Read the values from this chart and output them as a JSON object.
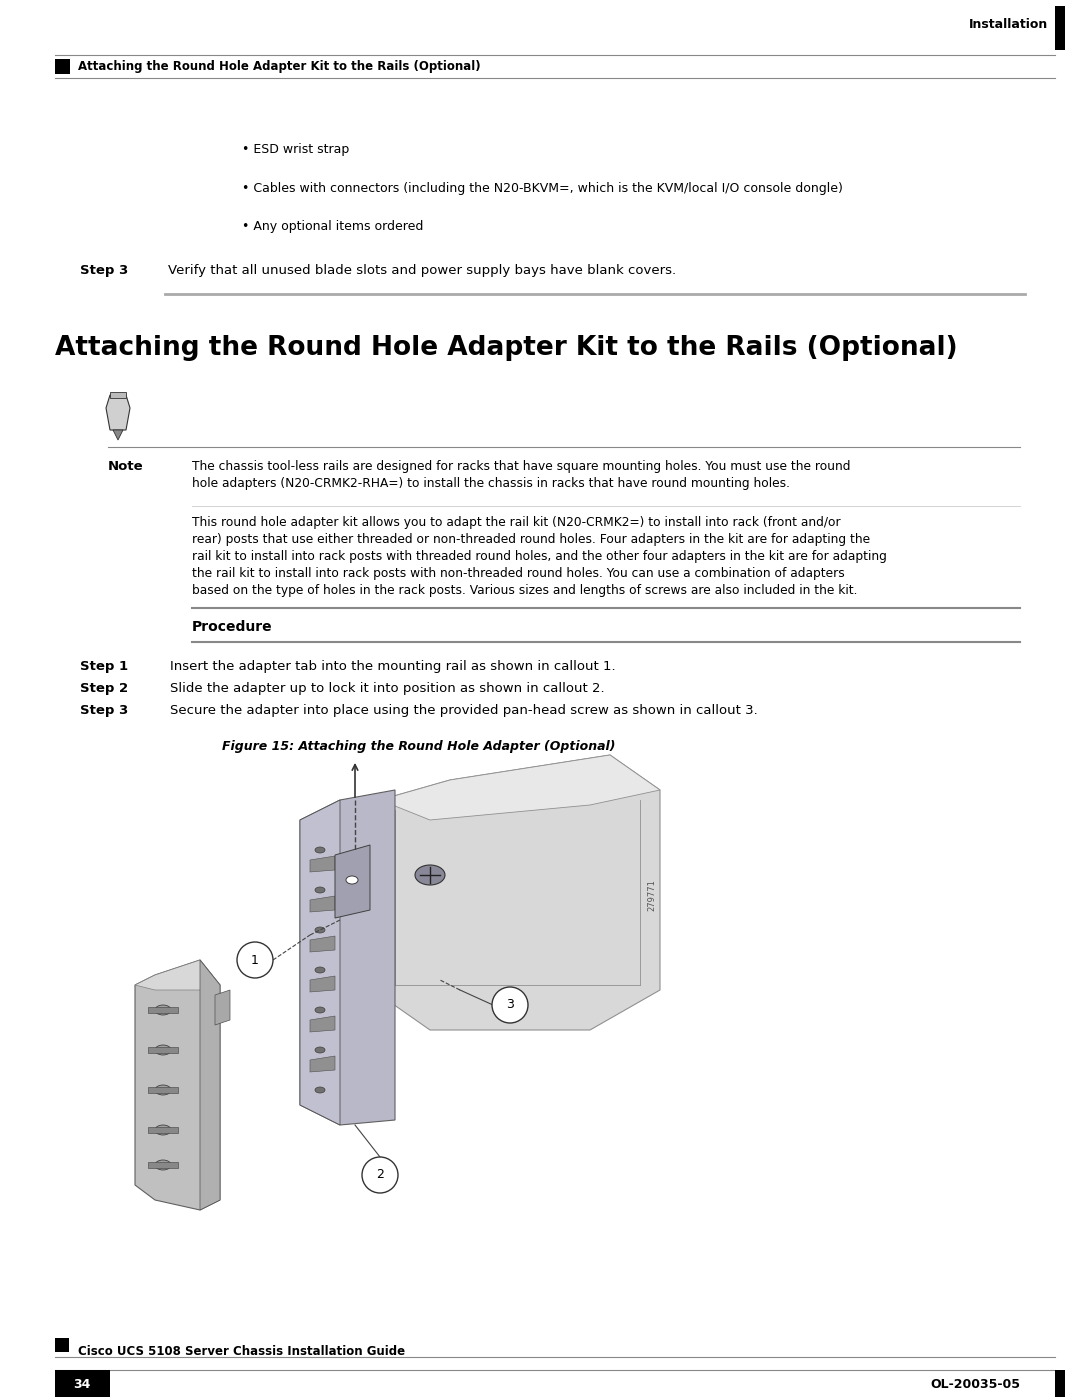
{
  "page_width": 10.8,
  "page_height": 13.97,
  "bg_color": "#ffffff",
  "header_text_right": "Installation",
  "header_subtext": "Attaching the Round Hole Adapter Kit to the Rails (Optional)",
  "footer_left_num": "34",
  "footer_right_text": "OL-20035-05",
  "footer_guide": "Cisco UCS 5108 Server Chassis Installation Guide",
  "bullet_items": [
    "• ESD wrist strap",
    "• Cables with connectors (including the N20-BKVM=, which is the KVM/local I/O console dongle)",
    "• Any optional items ordered"
  ],
  "step3_label": "Step 3",
  "step3_text": "Verify that all unused blade slots and power supply bays have blank covers.",
  "section_title": "Attaching the Round Hole Adapter Kit to the Rails (Optional)",
  "note_label": "Note",
  "note_text1_lines": [
    "The chassis tool-less rails are designed for racks that have square mounting holes. You must use the round",
    "hole adapters (N20-CRMK2-RHA=) to install the chassis in racks that have round mounting holes."
  ],
  "note_text2_lines": [
    "This round hole adapter kit allows you to adapt the rail kit (N20-CRMK2=) to install into rack (front and/or",
    "rear) posts that use either threaded or non-threaded round holes. Four adapters in the kit are for adapting the",
    "rail kit to install into rack posts with threaded round holes, and the other four adapters in the kit are for adapting",
    "the rail kit to install into rack posts with non-threaded round holes. You can use a combination of adapters",
    "based on the type of holes in the rack posts. Various sizes and lengths of screws are also included in the kit."
  ],
  "procedure_label": "Procedure",
  "proc_steps": [
    {
      "label": "Step 1",
      "text": "Insert the adapter tab into the mounting rail as shown in callout 1."
    },
    {
      "label": "Step 2",
      "text": "Slide the adapter up to lock it into position as shown in callout 2."
    },
    {
      "label": "Step 3",
      "text": "Secure the adapter into place using the provided pan-head screw as shown in callout 3."
    }
  ],
  "figure_caption": "Figure 15: Attaching the Round Hole Adapter (Optional)"
}
